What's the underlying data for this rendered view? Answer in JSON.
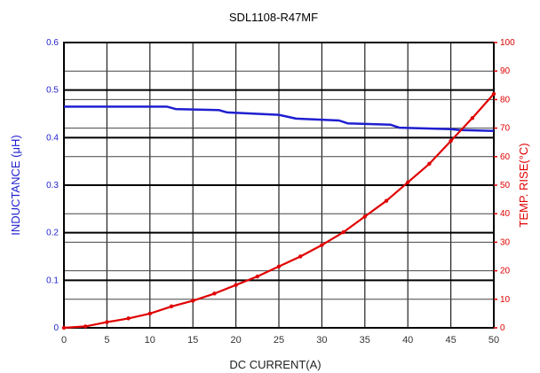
{
  "chart_data": {
    "type": "line",
    "title": "SDL1108-R47MF",
    "xlabel": "DC CURRENT(A)",
    "ylabel_left": "INDUCTANCE (μH)",
    "ylabel_right": "TEMP. RISE(°C)",
    "xlim": [
      0,
      50
    ],
    "ylim_left": [
      0,
      0.6
    ],
    "ylim_right": [
      0,
      100
    ],
    "x_ticks": [
      "0",
      "5",
      "10",
      "15",
      "20",
      "25",
      "30",
      "35",
      "40",
      "45",
      "50"
    ],
    "y_left_ticks": [
      "0",
      "0.1",
      "0.2",
      "0.3",
      "0.4",
      "0.5",
      "0.6"
    ],
    "y_right_ticks": [
      "0",
      "10",
      "20",
      "30",
      "40",
      "50",
      "60",
      "70",
      "80",
      "90",
      "100"
    ],
    "grid": true,
    "series": [
      {
        "axis": "left",
        "color": "#1f1fd0",
        "x": [
          0,
          5,
          10,
          12,
          13,
          18,
          19,
          25,
          27,
          32,
          33,
          38,
          39,
          45,
          46,
          50
        ],
        "y": [
          0.465,
          0.465,
          0.465,
          0.465,
          0.46,
          0.458,
          0.453,
          0.448,
          0.44,
          0.436,
          0.43,
          0.427,
          0.421,
          0.418,
          0.416,
          0.414
        ]
      },
      {
        "axis": "right",
        "color": "#e00000",
        "x": [
          0,
          2.5,
          5,
          7.5,
          10,
          12.5,
          15,
          17.5,
          20,
          22.5,
          25,
          27.5,
          30,
          32.5,
          35,
          37.5,
          40,
          42.5,
          45,
          47.5,
          50
        ],
        "y": [
          0,
          0.5,
          2,
          3.3,
          5,
          7.5,
          9.5,
          12,
          15,
          18,
          21.5,
          25,
          29,
          33.5,
          39,
          44.5,
          51,
          57.5,
          65.5,
          73.5,
          82
        ]
      }
    ]
  }
}
